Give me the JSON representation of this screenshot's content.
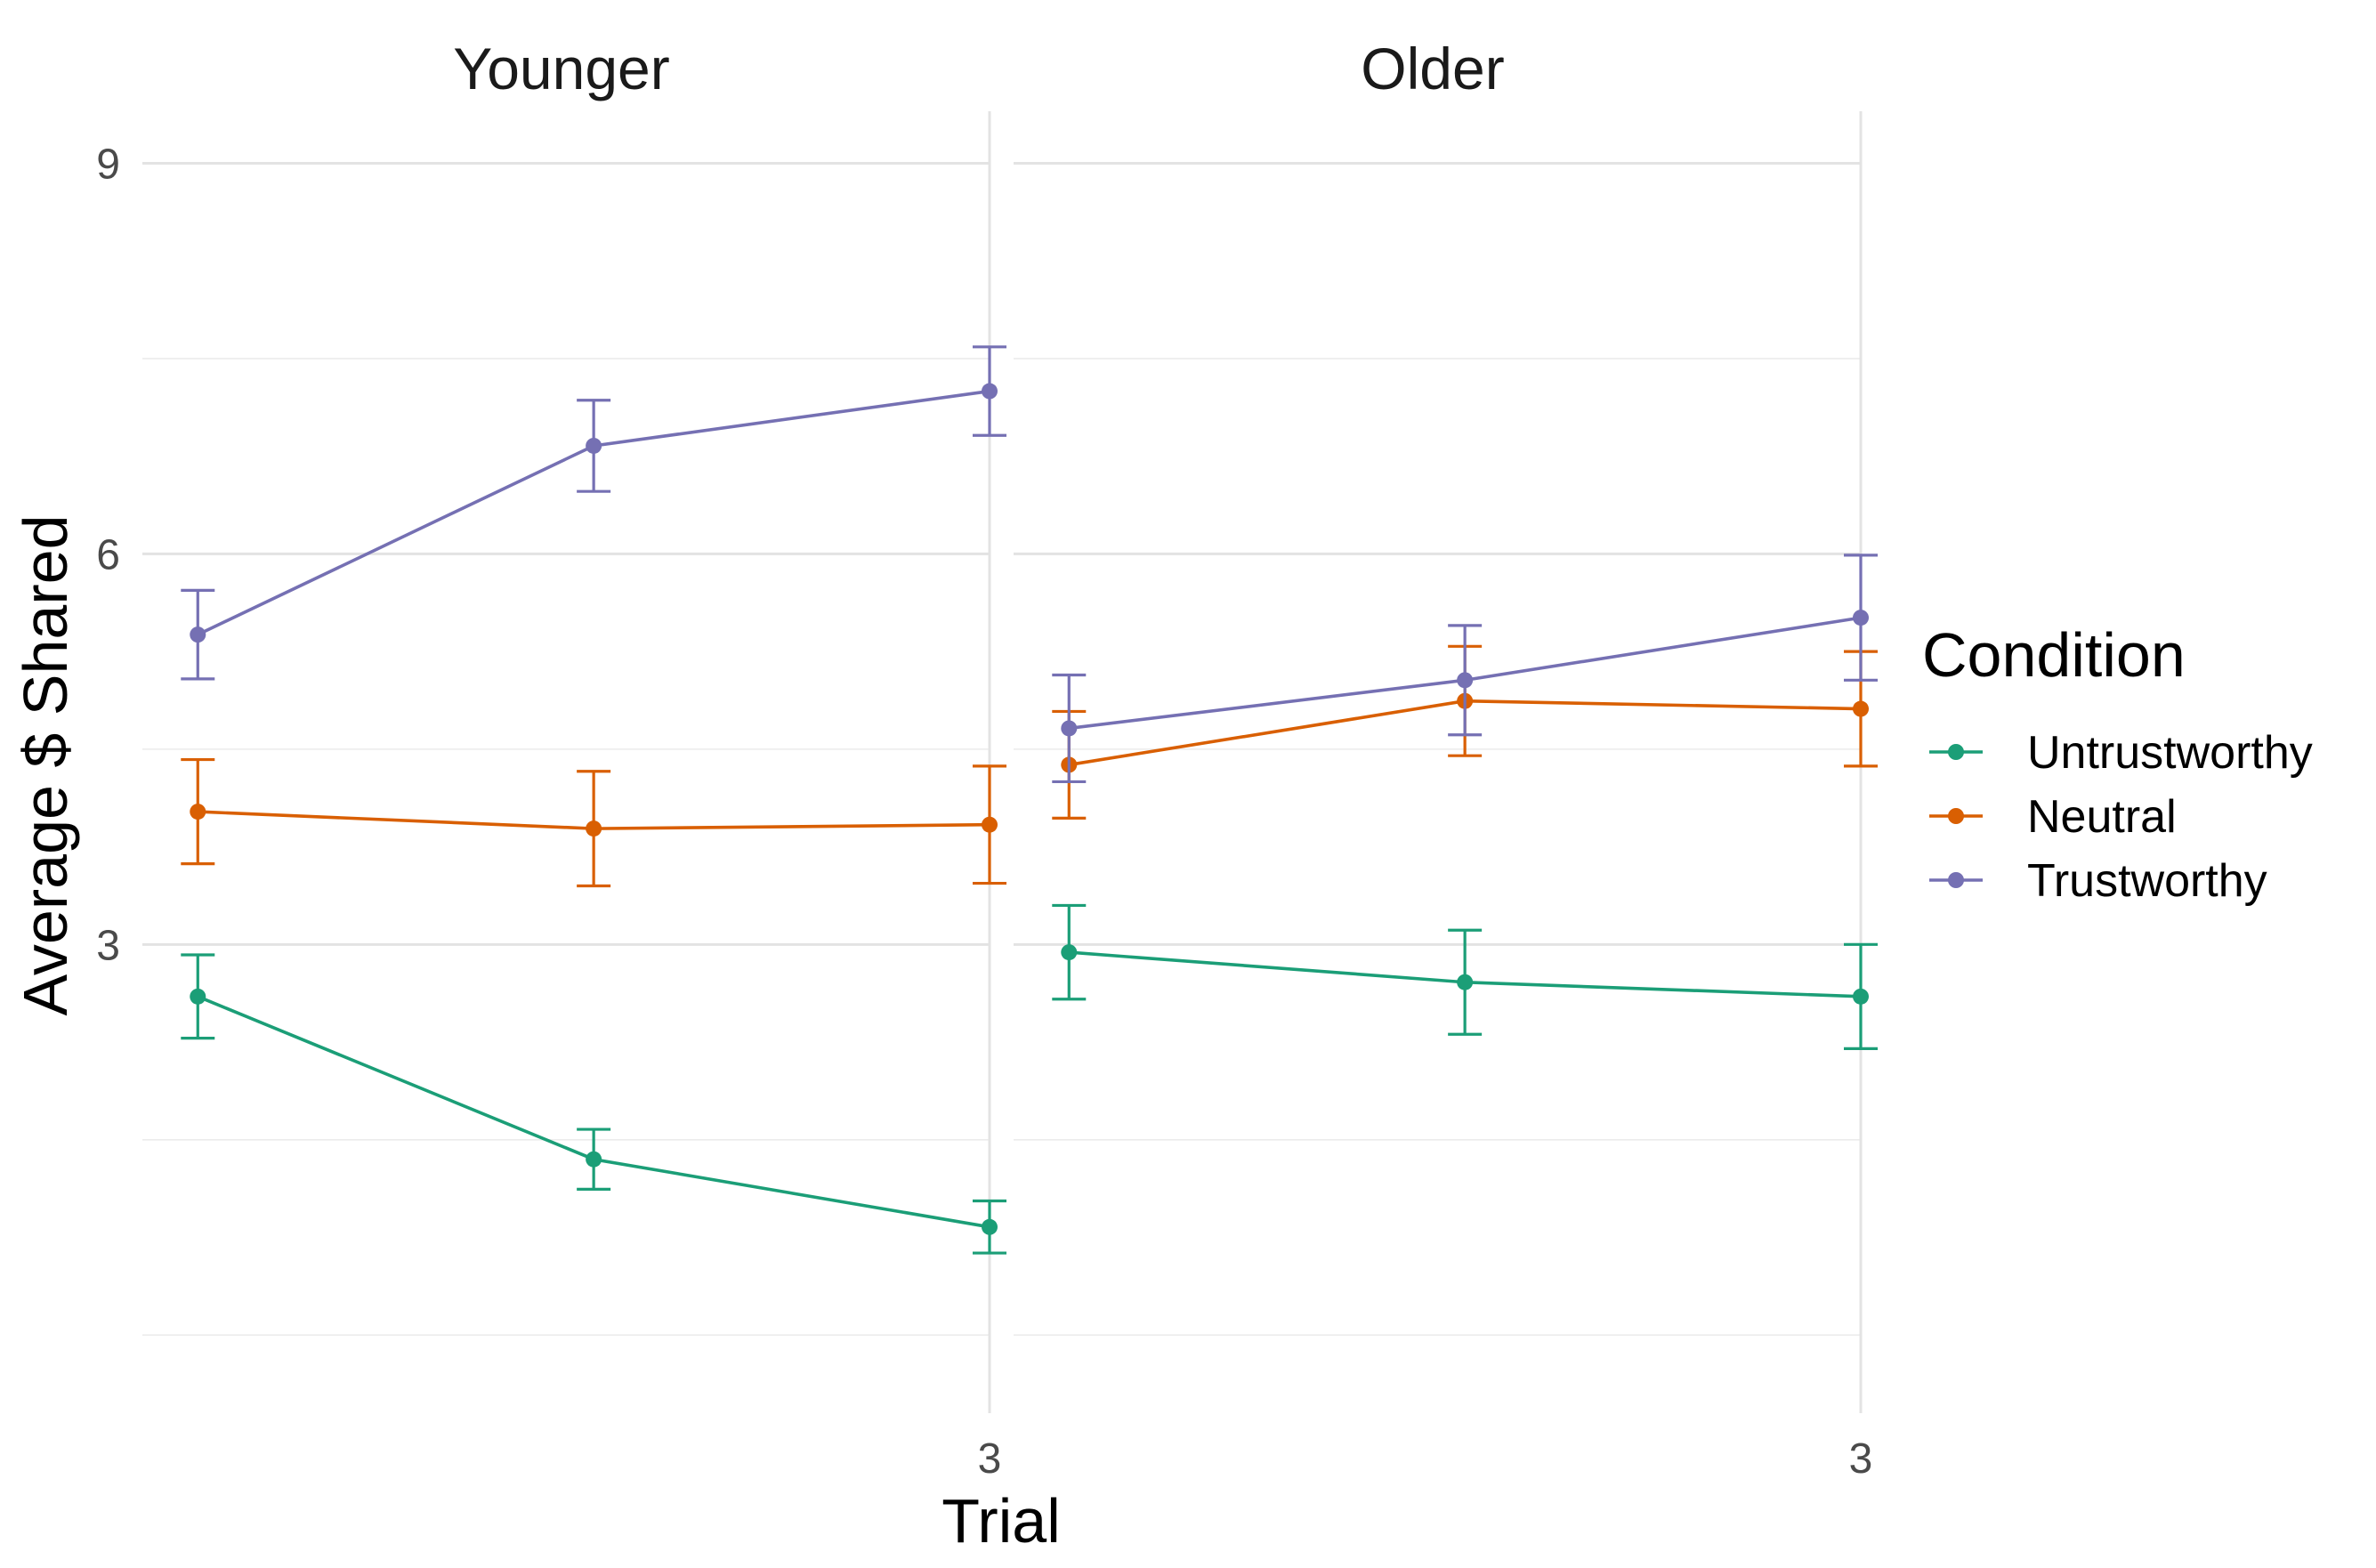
{
  "chart_data": {
    "type": "line",
    "xlabel": "Trial",
    "ylabel": "Average $ Shared",
    "ylim": [
      -0.6,
      9.4
    ],
    "y_ticks": [
      3,
      6,
      9
    ],
    "y_minor_ticks": [
      0,
      1.5,
      4.5,
      7.5
    ],
    "xlim": [
      0.86,
      3.0
    ],
    "x_ticks": [
      3
    ],
    "x_minor_ticks": [
      1,
      2
    ],
    "x": [
      1,
      2,
      3
    ],
    "grid": true,
    "legend": {
      "title": "Condition",
      "position": "right"
    },
    "colors": {
      "Untrustworthy": "#1b9e77",
      "Neutral": "#d95f02",
      "Trustworthy": "#7570b3"
    },
    "panels": [
      {
        "label": "Younger",
        "series": [
          {
            "name": "Untrustworthy",
            "y": [
              2.6,
              1.35,
              0.83
            ],
            "lower": [
              2.28,
              1.12,
              0.63
            ],
            "upper": [
              2.92,
              1.58,
              1.03
            ]
          },
          {
            "name": "Neutral",
            "y": [
              4.02,
              3.89,
              3.92
            ],
            "lower": [
              3.62,
              3.45,
              3.47
            ],
            "upper": [
              4.42,
              4.33,
              4.37
            ]
          },
          {
            "name": "Trustworthy",
            "y": [
              5.38,
              6.83,
              7.25
            ],
            "lower": [
              5.04,
              6.48,
              6.91
            ],
            "upper": [
              5.72,
              7.18,
              7.59
            ]
          }
        ]
      },
      {
        "label": "Older",
        "series": [
          {
            "name": "Untrustworthy",
            "y": [
              2.94,
              2.71,
              2.6
            ],
            "lower": [
              2.58,
              2.31,
              2.2
            ],
            "upper": [
              3.3,
              3.11,
              3.0
            ]
          },
          {
            "name": "Neutral",
            "y": [
              4.38,
              4.87,
              4.81
            ],
            "lower": [
              3.97,
              4.45,
              4.37
            ],
            "upper": [
              4.79,
              5.29,
              5.25
            ]
          },
          {
            "name": "Trustworthy",
            "y": [
              4.66,
              5.03,
              5.51
            ],
            "lower": [
              4.25,
              4.61,
              5.03
            ],
            "upper": [
              5.07,
              5.45,
              5.99
            ]
          }
        ]
      }
    ]
  }
}
